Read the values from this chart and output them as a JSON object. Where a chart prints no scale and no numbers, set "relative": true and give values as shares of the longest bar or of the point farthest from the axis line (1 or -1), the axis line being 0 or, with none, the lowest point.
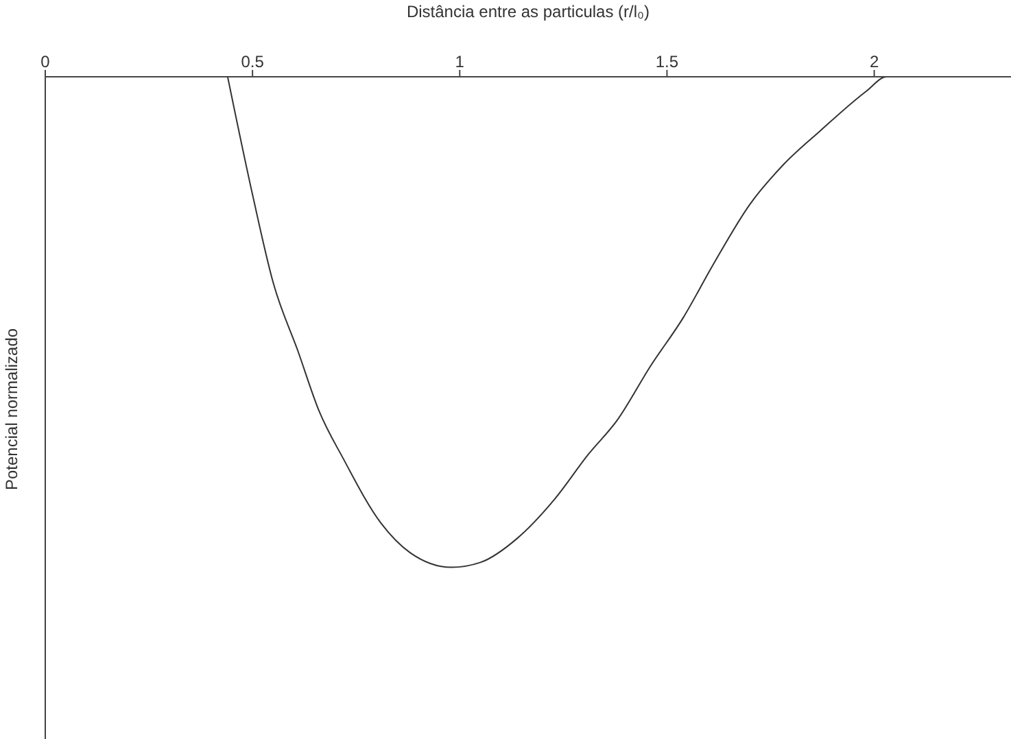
{
  "chart_data": {
    "type": "line",
    "relative": true,
    "xlabel": "Distância entre as particulas (r/l₀)",
    "ylabel": "Potencial normalizado",
    "xlim": [
      0,
      2.33
    ],
    "xticks": [
      0,
      0.5,
      1,
      1.5,
      2
    ],
    "grid": false,
    "legend": false,
    "marker": "none",
    "line_style": "solid",
    "tick_labels": "x",
    "series": [
      {
        "color": "#333333",
        "x": [
          0.44,
          0.5,
          0.55,
          0.61,
          0.66,
          0.72,
          0.81,
          0.88,
          0.98,
          1.05,
          1.14,
          1.23,
          1.31,
          1.38,
          1.46,
          1.54,
          1.61,
          1.7,
          1.78,
          1.87,
          1.98,
          2.03,
          2.33
        ],
        "values": [
          0,
          -0.24,
          -0.42,
          -0.56,
          -0.68,
          -0.78,
          -0.91,
          -0.97,
          -1,
          -0.99,
          -0.94,
          -0.86,
          -0.77,
          -0.7,
          -0.59,
          -0.49,
          -0.385,
          -0.26,
          -0.18,
          -0.11,
          -0.03,
          0,
          0
        ]
      }
    ]
  }
}
